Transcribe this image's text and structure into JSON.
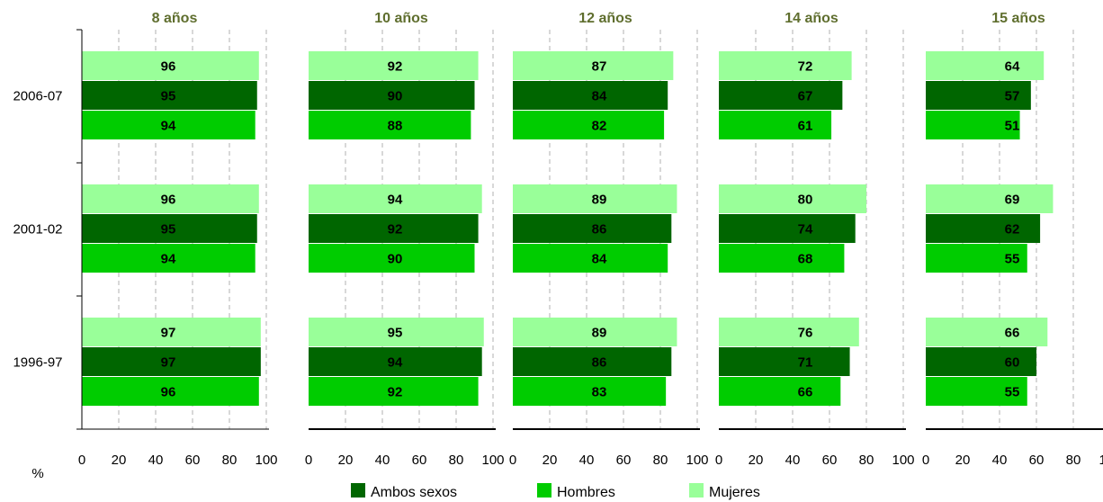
{
  "chart_data": {
    "type": "bar",
    "orientation": "horizontal",
    "unit_label": "%",
    "xlim": [
      0,
      100
    ],
    "x_ticks": [
      0,
      20,
      40,
      60,
      80,
      100
    ],
    "grid": "vertical dashed",
    "legend_position": "bottom",
    "row_categories": [
      "2006-07",
      "2001-02",
      "1996-97"
    ],
    "series_names": [
      "Mujeres",
      "Ambos sexos",
      "Hombres"
    ],
    "colors": {
      "Mujeres": "#99ff99",
      "Ambos sexos": "#006600",
      "Hombres": "#00cc00",
      "title": "#5f6e2e",
      "grid": "#b0b0b0"
    },
    "legend": [
      "Ambos sexos",
      "Hombres",
      "Mujeres"
    ],
    "panels": [
      {
        "title": "8 años",
        "values": {
          "2006-07": {
            "Mujeres": 96,
            "Ambos sexos": 95,
            "Hombres": 94
          },
          "2001-02": {
            "Mujeres": 96,
            "Ambos sexos": 95,
            "Hombres": 94
          },
          "1996-97": {
            "Mujeres": 97,
            "Ambos sexos": 97,
            "Hombres": 96
          }
        }
      },
      {
        "title": "10 años",
        "values": {
          "2006-07": {
            "Mujeres": 92,
            "Ambos sexos": 90,
            "Hombres": 88
          },
          "2001-02": {
            "Mujeres": 94,
            "Ambos sexos": 92,
            "Hombres": 90
          },
          "1996-97": {
            "Mujeres": 95,
            "Ambos sexos": 94,
            "Hombres": 92
          }
        }
      },
      {
        "title": "12 años",
        "values": {
          "2006-07": {
            "Mujeres": 87,
            "Ambos sexos": 84,
            "Hombres": 82
          },
          "2001-02": {
            "Mujeres": 89,
            "Ambos sexos": 86,
            "Hombres": 84
          },
          "1996-97": {
            "Mujeres": 89,
            "Ambos sexos": 86,
            "Hombres": 83
          }
        }
      },
      {
        "title": "14 años",
        "values": {
          "2006-07": {
            "Mujeres": 72,
            "Ambos sexos": 67,
            "Hombres": 61
          },
          "2001-02": {
            "Mujeres": 80,
            "Ambos sexos": 74,
            "Hombres": 68
          },
          "1996-97": {
            "Mujeres": 76,
            "Ambos sexos": 71,
            "Hombres": 66
          }
        }
      },
      {
        "title": "15 años",
        "values": {
          "2006-07": {
            "Mujeres": 64,
            "Ambos sexos": 57,
            "Hombres": 51
          },
          "2001-02": {
            "Mujeres": 69,
            "Ambos sexos": 62,
            "Hombres": 55
          },
          "1996-97": {
            "Mujeres": 66,
            "Ambos sexos": 60,
            "Hombres": 55
          }
        }
      }
    ]
  }
}
